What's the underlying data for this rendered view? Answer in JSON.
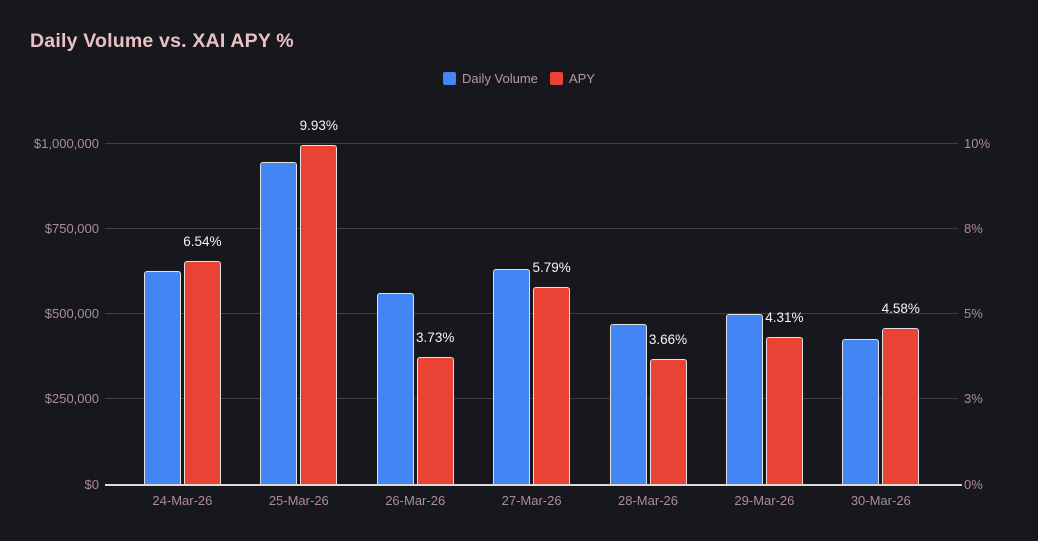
{
  "chart_data": {
    "type": "bar",
    "title": "Daily Volume vs. XAI APY %",
    "categories": [
      "24-Mar-26",
      "25-Mar-26",
      "26-Mar-26",
      "27-Mar-26",
      "28-Mar-26",
      "29-Mar-26",
      "30-Mar-26"
    ],
    "series": [
      {
        "name": "Daily Volume",
        "axis": "left",
        "color": "#4285f4",
        "values": [
          625000,
          945000,
          560000,
          630000,
          470000,
          500000,
          425000
        ]
      },
      {
        "name": "APY",
        "axis": "right",
        "color": "#ea4335",
        "values": [
          6.54,
          9.93,
          3.73,
          5.79,
          3.66,
          4.31,
          4.58
        ],
        "data_labels": [
          "6.54%",
          "9.93%",
          "3.73%",
          "5.79%",
          "3.66%",
          "4.31%",
          "4.58%"
        ]
      }
    ],
    "left_axis": {
      "min": 0,
      "max": 1000000,
      "tick_values": [
        0,
        250000,
        500000,
        750000,
        1000000
      ],
      "tick_labels": [
        "$0",
        "$250,000",
        "$500,000",
        "$750,000",
        "$1,000,000"
      ]
    },
    "right_axis": {
      "min": 0,
      "max": 10,
      "tick_values": [
        0,
        2.5,
        5,
        7.5,
        10
      ],
      "tick_labels": [
        "0%",
        "3%",
        "5%",
        "8%",
        "10%"
      ]
    },
    "legend_position": "top",
    "grid": true
  },
  "colors": {
    "background": "#16181d",
    "title": "#e9c0c4",
    "axis_label": "#ab8e93",
    "legend_label": "#b79a9e",
    "gridline": "#3c3f45",
    "axis_baseline": "#e3d8d9",
    "data_label": "#f5f5f5",
    "bar_border": "#e3e0e0",
    "daily_volume": "#4285f4",
    "apy": "#ea4335"
  }
}
